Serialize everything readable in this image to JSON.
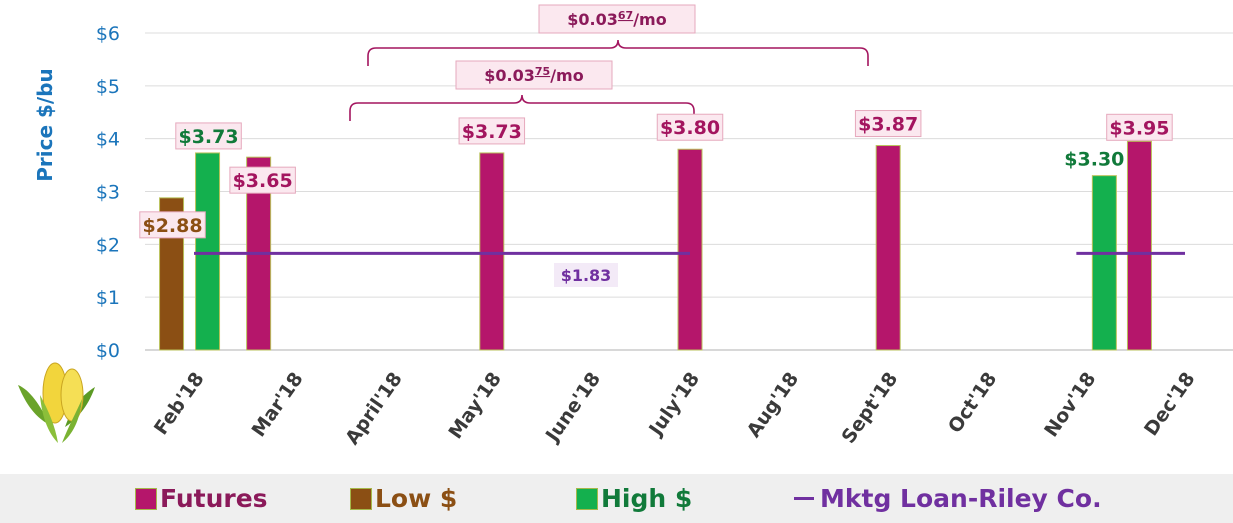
{
  "chart_data": {
    "type": "bar",
    "ylabel": "Price $/bu",
    "ylim": [
      0,
      6
    ],
    "yticks": [
      "$0",
      "$1",
      "$2",
      "$3",
      "$4",
      "$5",
      "$6"
    ],
    "categories": [
      "Feb'18",
      "Mar'18",
      "April'18",
      "May'18",
      "June'18",
      "July'18",
      "Aug'18",
      "Sept'18",
      "Oct'18",
      "Nov'18",
      "Dec'18"
    ],
    "series": [
      {
        "name": "Futures",
        "color": "#b5166b",
        "values": [
          null,
          3.65,
          null,
          3.73,
          null,
          3.8,
          null,
          3.87,
          null,
          null,
          3.95
        ],
        "labels": [
          "",
          "$3.65",
          "",
          "$3.73",
          "",
          "$3.80",
          "",
          "$3.87",
          "",
          "",
          "$3.95"
        ]
      },
      {
        "name": "Low $",
        "color": "#8b4f14",
        "values": [
          2.88,
          null,
          null,
          null,
          null,
          null,
          null,
          null,
          null,
          null,
          null
        ],
        "labels": [
          "$2.88",
          "",
          "",
          "",
          "",
          "",
          "",
          "",
          "",
          "",
          ""
        ]
      },
      {
        "name": "High $",
        "color": "#14b04e",
        "values": [
          3.73,
          null,
          null,
          null,
          null,
          null,
          null,
          null,
          null,
          3.3,
          null
        ],
        "labels": [
          "$3.73",
          "",
          "",
          "",
          "",
          "",
          "",
          "",
          "",
          "$3.30",
          ""
        ]
      }
    ],
    "line": {
      "name": "Mktg Loan-Riley Co.",
      "color": "#7030a0",
      "value": 1.83,
      "label": "$1.83",
      "segments": [
        [
          "Feb'18",
          "July'18"
        ],
        [
          "Nov'18",
          "Dec'18"
        ]
      ]
    },
    "annotations": [
      {
        "base": "$0.03",
        "sup": "67",
        "suffix": "/mo"
      },
      {
        "base": "$0.03",
        "sup": "75",
        "suffix": "/mo"
      }
    ]
  },
  "legend": [
    {
      "label": "Futures",
      "color": "#b5166b",
      "text_color": "#8b1a5a",
      "kind": "bar"
    },
    {
      "label": "Low $",
      "color": "#8b4f14",
      "text_color": "#8b4f14",
      "kind": "bar"
    },
    {
      "label": "High $",
      "color": "#14b04e",
      "text_color": "#117a3a",
      "kind": "bar"
    },
    {
      "label": "Mktg Loan-Riley Co.",
      "color": "#7030a0",
      "text_color": "#7030a0",
      "kind": "line"
    }
  ],
  "decoration": {
    "icon": "corn-icon"
  }
}
